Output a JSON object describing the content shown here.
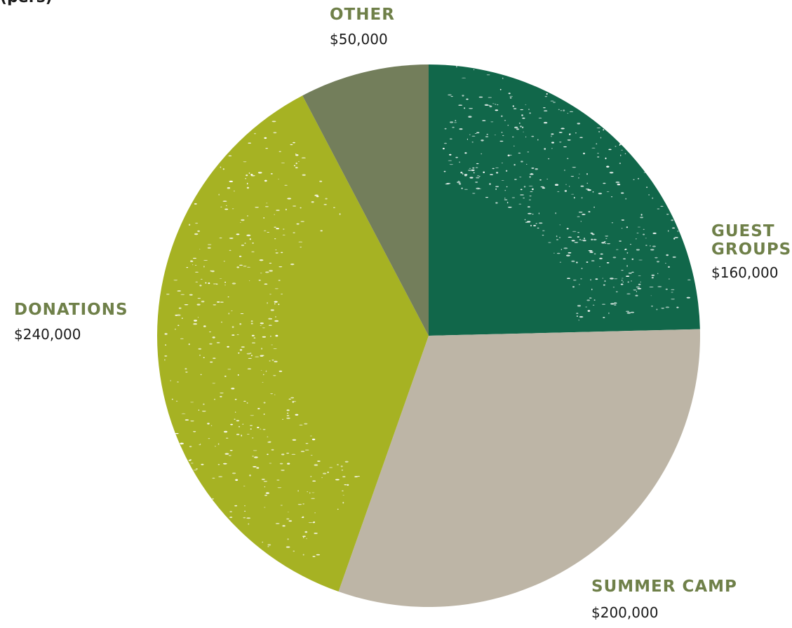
{
  "colors": {
    "label_text": "#6f8049",
    "amount_text": "#1a1a1a"
  },
  "header_fragment": "(pers)",
  "chart_data": {
    "type": "pie",
    "start_angle_deg": 0,
    "direction": "clockwise",
    "slices": [
      {
        "key": "guest",
        "label": "GUEST GROUPS",
        "label_lines": [
          "GUEST",
          "GROUPS"
        ],
        "value": 160000,
        "value_label": "$160,000",
        "color": "#11674a",
        "textured": true
      },
      {
        "key": "summer",
        "label": "SUMMER CAMP",
        "label_lines": [
          "SUMMER CAMP"
        ],
        "value": 200000,
        "value_label": "$200,000",
        "color": "#bdb5a6",
        "textured": false
      },
      {
        "key": "donations",
        "label": "DONATIONS",
        "label_lines": [
          "DONATIONS"
        ],
        "value": 240000,
        "value_label": "$240,000",
        "color": "#a6b223",
        "textured": true
      },
      {
        "key": "other",
        "label": "OTHER",
        "label_lines": [
          "OTHER"
        ],
        "value": 50000,
        "value_label": "$50,000",
        "color": "#737e5b",
        "textured": false
      }
    ]
  }
}
